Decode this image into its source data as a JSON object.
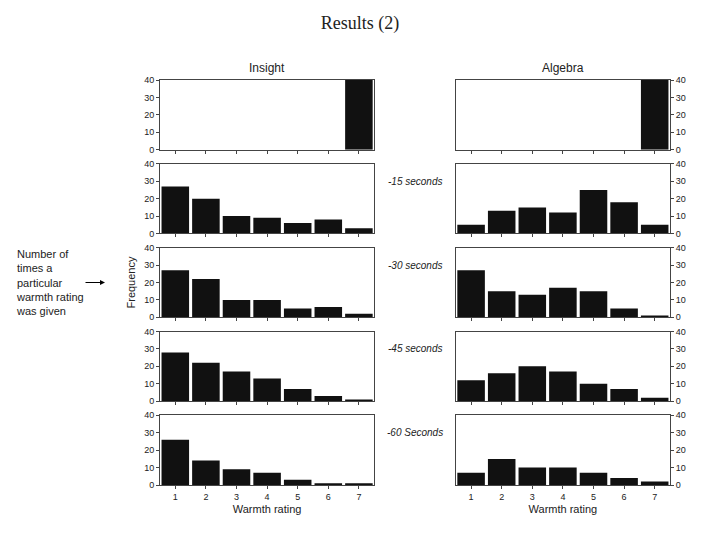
{
  "chart_data": [
    {
      "type": "bar",
      "title": "Results (2)",
      "subtitle": "Insight",
      "x": [
        1,
        2,
        3,
        4,
        5,
        6,
        7
      ],
      "values": [
        0,
        0,
        0,
        0,
        0,
        0,
        40
      ],
      "color": "#111111",
      "xlim": [
        0.5,
        7.5
      ],
      "ylim": [
        0,
        40
      ],
      "xticks": [
        1,
        2,
        3,
        4,
        5,
        6,
        7
      ],
      "yticks": [
        0,
        10,
        20,
        30,
        40
      ],
      "grid": false,
      "tick_labels": "y"
    },
    {
      "type": "bar",
      "subtitle": "Algebra",
      "x": [
        1,
        2,
        3,
        4,
        5,
        6,
        7
      ],
      "values": [
        0,
        0,
        0,
        0,
        0,
        0,
        40
      ],
      "color": "#111111",
      "xlim": [
        0.5,
        7.5
      ],
      "ylim": [
        0,
        40
      ],
      "xticks": [
        1,
        2,
        3,
        4,
        5,
        6,
        7
      ],
      "yticks": [
        0,
        10,
        20,
        30,
        40
      ],
      "grid": false,
      "tick_labels": "y"
    },
    {
      "type": "bar",
      "x": [
        1,
        2,
        3,
        4,
        5,
        6,
        7
      ],
      "values": [
        27,
        20,
        10,
        9,
        6,
        8,
        3
      ],
      "color": "#111111",
      "xlim": [
        0.5,
        7.5
      ],
      "ylim": [
        0,
        40
      ],
      "xticks": [
        1,
        2,
        3,
        4,
        5,
        6,
        7
      ],
      "yticks": [
        0,
        10,
        20,
        30,
        40
      ],
      "grid": false,
      "tick_labels": "y"
    },
    {
      "type": "bar",
      "annotation": "-15 seconds",
      "x": [
        1,
        2,
        3,
        4,
        5,
        6,
        7
      ],
      "values": [
        5,
        13,
        15,
        12,
        25,
        18,
        5
      ],
      "color": "#111111",
      "xlim": [
        0.5,
        7.5
      ],
      "ylim": [
        0,
        40
      ],
      "xticks": [
        1,
        2,
        3,
        4,
        5,
        6,
        7
      ],
      "yticks": [
        0,
        10,
        20,
        30,
        40
      ],
      "grid": false,
      "tick_labels": "y"
    },
    {
      "type": "bar",
      "ylabel": "Frequency",
      "annotation": "Number of\ntimes a\nparticular\nwarmth rating\nwas given",
      "x": [
        1,
        2,
        3,
        4,
        5,
        6,
        7
      ],
      "values": [
        27,
        22,
        10,
        10,
        5,
        6,
        2
      ],
      "color": "#111111",
      "xlim": [
        0.5,
        7.5
      ],
      "ylim": [
        0,
        40
      ],
      "xticks": [
        1,
        2,
        3,
        4,
        5,
        6,
        7
      ],
      "yticks": [
        0,
        10,
        20,
        30,
        40
      ],
      "grid": false,
      "tick_labels": "y"
    },
    {
      "type": "bar",
      "annotation": "-30 seconds",
      "x": [
        1,
        2,
        3,
        4,
        5,
        6,
        7
      ],
      "values": [
        27,
        15,
        13,
        17,
        15,
        5,
        1
      ],
      "color": "#111111",
      "xlim": [
        0.5,
        7.5
      ],
      "ylim": [
        0,
        40
      ],
      "xticks": [
        1,
        2,
        3,
        4,
        5,
        6,
        7
      ],
      "yticks": [
        0,
        10,
        20,
        30,
        40
      ],
      "grid": false,
      "tick_labels": "y"
    },
    {
      "type": "bar",
      "x": [
        1,
        2,
        3,
        4,
        5,
        6,
        7
      ],
      "values": [
        28,
        22,
        17,
        13,
        7,
        3,
        1
      ],
      "color": "#111111",
      "xlim": [
        0.5,
        7.5
      ],
      "ylim": [
        0,
        40
      ],
      "xticks": [
        1,
        2,
        3,
        4,
        5,
        6,
        7
      ],
      "yticks": [
        0,
        10,
        20,
        30,
        40
      ],
      "grid": false,
      "tick_labels": "y"
    },
    {
      "type": "bar",
      "annotation": "-45 seconds",
      "x": [
        1,
        2,
        3,
        4,
        5,
        6,
        7
      ],
      "values": [
        12,
        16,
        20,
        17,
        10,
        7,
        2
      ],
      "color": "#111111",
      "xlim": [
        0.5,
        7.5
      ],
      "ylim": [
        0,
        40
      ],
      "xticks": [
        1,
        2,
        3,
        4,
        5,
        6,
        7
      ],
      "yticks": [
        0,
        10,
        20,
        30,
        40
      ],
      "grid": false,
      "tick_labels": "y"
    },
    {
      "type": "bar",
      "xlabel": "Warmth rating",
      "x": [
        1,
        2,
        3,
        4,
        5,
        6,
        7
      ],
      "values": [
        26,
        14,
        9,
        7,
        3,
        1,
        1
      ],
      "color": "#111111",
      "xlim": [
        0.5,
        7.5
      ],
      "ylim": [
        0,
        40
      ],
      "xticks": [
        1,
        2,
        3,
        4,
        5,
        6,
        7
      ],
      "yticks": [
        0,
        10,
        20,
        30,
        40
      ],
      "grid": false
    },
    {
      "type": "bar",
      "xlabel": "Warmth rating",
      "annotation": "-60 Seconds",
      "x": [
        1,
        2,
        3,
        4,
        5,
        6,
        7
      ],
      "values": [
        7,
        15,
        10,
        10,
        7,
        4,
        2
      ],
      "color": "#111111",
      "xlim": [
        0.5,
        7.5
      ],
      "ylim": [
        0,
        40
      ],
      "xticks": [
        1,
        2,
        3,
        4,
        5,
        6,
        7
      ],
      "yticks": [
        0,
        10,
        20,
        30,
        40
      ],
      "grid": false
    }
  ]
}
